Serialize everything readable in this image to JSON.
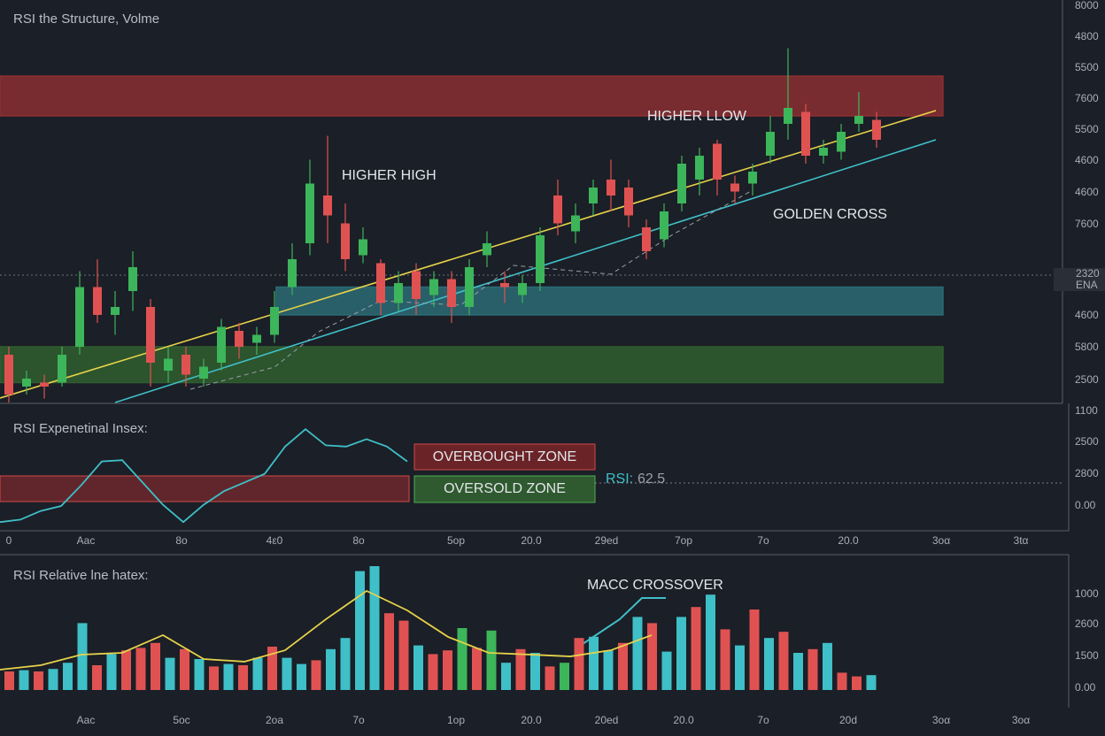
{
  "chart_data": [
    {
      "type": "candlestick",
      "title": "RSI the Structure, Volme",
      "annotations": [
        "HIGHER HIGH",
        "HIGHER LLOW",
        "GOLDEN CROSS"
      ],
      "ylim": [
        0,
        100
      ],
      "axis_labels": [
        "8000",
        "4800",
        "5500",
        "7600",
        "5500",
        "4600",
        "4600",
        "7600",
        "4600",
        "5800",
        "2500"
      ],
      "last_price": {
        "label": "2320",
        "sublabel": "ENA"
      },
      "zones": [
        {
          "range": [
            72,
            82
          ],
          "color": "#8a2f33"
        },
        {
          "range": [
            22,
            29
          ],
          "color": "#2a6b74"
        },
        {
          "range": [
            5,
            14
          ],
          "color": "#2f5e2f"
        }
      ],
      "up_color": "#3db55a",
      "down_color": "#e05252",
      "open": [
        12,
        4,
        5,
        5,
        14,
        29,
        22,
        28,
        24,
        8,
        12,
        6,
        10,
        18,
        15,
        17,
        29,
        40,
        52,
        45,
        37,
        35,
        25,
        33,
        27,
        31,
        24,
        37,
        30,
        27,
        30,
        52,
        43,
        50,
        56,
        54,
        44,
        41,
        50,
        56,
        65,
        55,
        55,
        62,
        70,
        73,
        62,
        63,
        70,
        71
      ],
      "high": [
        14,
        8,
        7,
        14,
        33,
        36,
        28,
        38,
        26,
        14,
        14,
        11,
        21,
        20,
        19,
        28,
        40,
        61,
        67,
        50,
        44,
        36,
        33,
        35,
        33,
        33,
        36,
        43,
        33,
        32,
        44,
        56,
        50,
        56,
        61,
        56,
        46,
        50,
        62,
        64,
        66,
        57,
        60,
        72,
        89,
        75,
        66,
        70,
        78,
        73
      ],
      "low": [
        0,
        2,
        1,
        4,
        12,
        20,
        17,
        23,
        4,
        5,
        4,
        4,
        8,
        11,
        12,
        15,
        27,
        37,
        40,
        33,
        35,
        22,
        23,
        22,
        24,
        20,
        22,
        34,
        25,
        25,
        28,
        42,
        40,
        47,
        48,
        44,
        36,
        39,
        48,
        52,
        52,
        50,
        52,
        60,
        66,
        60,
        60,
        61,
        68,
        64
      ],
      "close": [
        2,
        6,
        4,
        12,
        29,
        22,
        24,
        34,
        10,
        11,
        7,
        9,
        19,
        14,
        17,
        24,
        36,
        55,
        47,
        36,
        41,
        25,
        30,
        26,
        31,
        24,
        34,
        40,
        29,
        30,
        42,
        45,
        47,
        54,
        52,
        47,
        38,
        48,
        60,
        62,
        56,
        53,
        58,
        68,
        74,
        62,
        64,
        68,
        72,
        66
      ]
    },
    {
      "type": "line",
      "title": "RSI Expenetinal Insex:",
      "color": "#3fbfc7",
      "ylim": [
        0,
        100
      ],
      "axis_labels": [
        "1100",
        "2500",
        "2800",
        "0.00"
      ],
      "zones": [
        "OVERBOUGHT ZONE",
        "OVERSOLD ZONE"
      ],
      "reading": {
        "label": "RSI:",
        "value": 62.5
      },
      "values": [
        7,
        9,
        16,
        20,
        37,
        56,
        57,
        39,
        21,
        7,
        21,
        32,
        39,
        46,
        68,
        82,
        69,
        68,
        74,
        68,
        56
      ],
      "x_labels": [
        "0",
        "Aac",
        "8o",
        "4ε0",
        "8o",
        "5op",
        "20.0",
        "29ed",
        "7op",
        "7o",
        "20.0",
        "3oα",
        "3tα"
      ]
    },
    {
      "type": "bar",
      "title": "RSI Relative lne hatex:",
      "annotation": "MACC CROSSOVER",
      "ylim": [
        0,
        1000
      ],
      "axis_labels": [
        "1000",
        "2600",
        "1500",
        "0.00"
      ],
      "values": [
        150,
        160,
        150,
        170,
        220,
        540,
        200,
        290,
        320,
        340,
        380,
        260,
        330,
        250,
        190,
        210,
        200,
        260,
        350,
        260,
        210,
        240,
        330,
        420,
        960,
        1000,
        620,
        560,
        360,
        290,
        320,
        500,
        340,
        480,
        220,
        330,
        300,
        190,
        220,
        420,
        430,
        320,
        380,
        590,
        540,
        310,
        590,
        670,
        770,
        490,
        360,
        650,
        420,
        470,
        300,
        330,
        380,
        140,
        110,
        120
      ],
      "colors": [
        "#e05252",
        "#3fbfc7",
        "#e05252",
        "#3fbfc7",
        "#3fbfc7",
        "#3fbfc7",
        "#e05252",
        "#3fbfc7",
        "#e05252",
        "#e05252",
        "#e05252",
        "#3fbfc7",
        "#e05252",
        "#3fbfc7",
        "#e05252",
        "#3fbfc7",
        "#e05252",
        "#3fbfc7",
        "#e05252",
        "#3fbfc7",
        "#3fbfc7",
        "#e05252",
        "#3fbfc7",
        "#3fbfc7",
        "#3fbfc7",
        "#3fbfc7",
        "#e05252",
        "#e05252",
        "#3fbfc7",
        "#e05252",
        "#e05252",
        "#3db55a",
        "#e05252",
        "#3db55a",
        "#3fbfc7",
        "#e05252",
        "#3fbfc7",
        "#e05252",
        "#3db55a",
        "#e05252",
        "#3fbfc7",
        "#3fbfc7",
        "#e05252",
        "#3fbfc7",
        "#e05252",
        "#3fbfc7",
        "#3fbfc7",
        "#e05252",
        "#3fbfc7",
        "#e05252",
        "#3fbfc7",
        "#e05252",
        "#3fbfc7",
        "#e05252",
        "#3fbfc7",
        "#e05252",
        "#3fbfc7",
        "#e05252",
        "#e05252",
        "#3fbfc7"
      ],
      "line": {
        "color": "#e6d24a",
        "values": [
          164,
          200,
          286,
          300,
          443,
          250,
          229,
          321,
          571,
          800,
          643,
          429,
          300,
          286,
          271,
          321,
          443
        ]
      },
      "x_labels": [
        "Aac",
        "5oc",
        "2oa",
        "7o",
        "1op",
        "20.0",
        "20ed",
        "20.0",
        "7o",
        "20d",
        "3oα",
        "3oα"
      ]
    }
  ]
}
